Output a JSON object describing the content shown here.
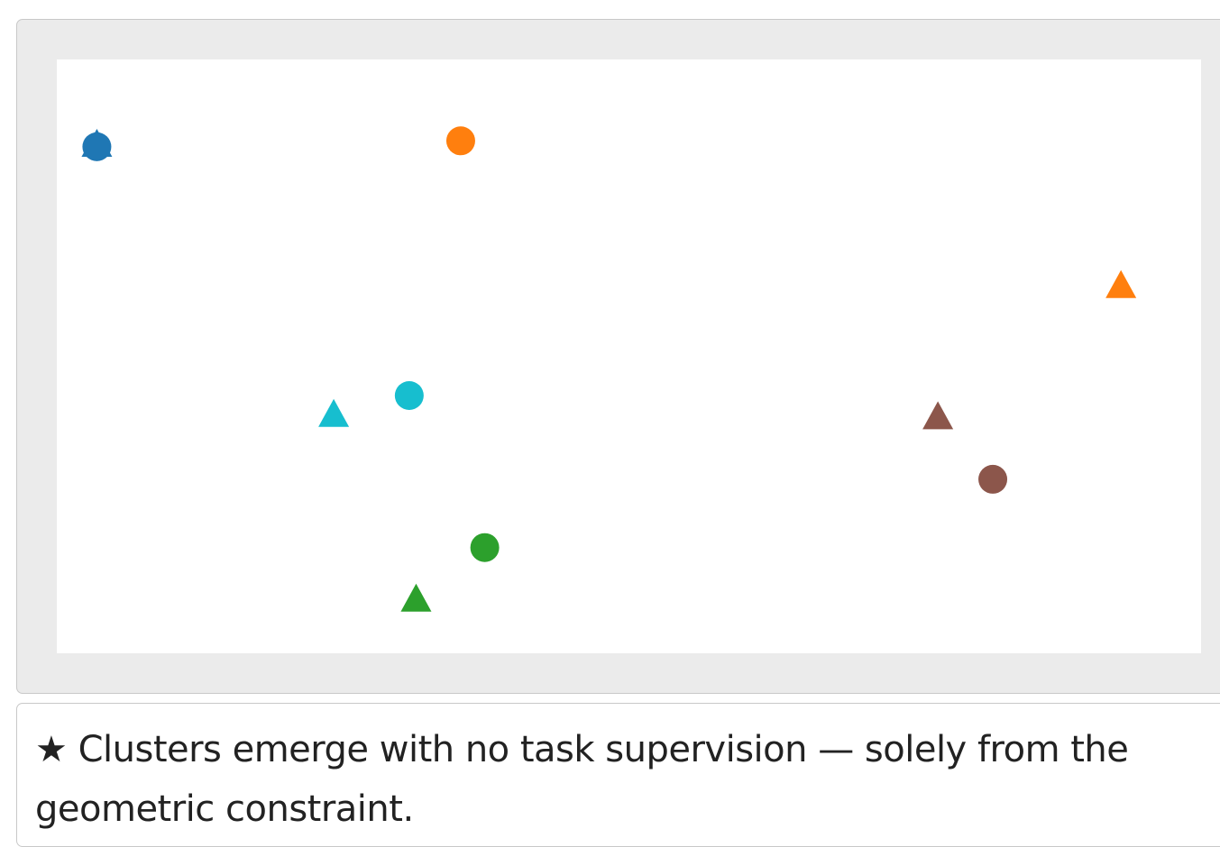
{
  "chart_data": {
    "type": "scatter",
    "title": "",
    "xlabel": "",
    "ylabel": "",
    "xlim": [
      0,
      100
    ],
    "ylim": [
      0,
      100
    ],
    "grid": false,
    "axes_visible": false,
    "points": [
      {
        "x": 3.5,
        "y": 85.5,
        "marker": "triangle",
        "color": "#1f77b4"
      },
      {
        "x": 3.5,
        "y": 85.3,
        "marker": "circle",
        "color": "#1f77b4"
      },
      {
        "x": 35.3,
        "y": 86.3,
        "marker": "circle",
        "color": "#ff7f0e"
      },
      {
        "x": 93.0,
        "y": 61.7,
        "marker": "triangle",
        "color": "#ff7f0e"
      },
      {
        "x": 30.8,
        "y": 43.4,
        "marker": "circle",
        "color": "#17becf"
      },
      {
        "x": 24.2,
        "y": 40.0,
        "marker": "triangle",
        "color": "#17becf"
      },
      {
        "x": 77.0,
        "y": 39.6,
        "marker": "triangle",
        "color": "#8c564b"
      },
      {
        "x": 81.8,
        "y": 29.3,
        "marker": "circle",
        "color": "#8c564b"
      },
      {
        "x": 37.4,
        "y": 17.8,
        "marker": "circle",
        "color": "#2ca02c"
      },
      {
        "x": 31.4,
        "y": 8.9,
        "marker": "triangle",
        "color": "#2ca02c"
      }
    ]
  },
  "caption": {
    "star_glyph": "★",
    "text": "Clusters emerge with no task supervision — solely from the geometric constraint."
  }
}
